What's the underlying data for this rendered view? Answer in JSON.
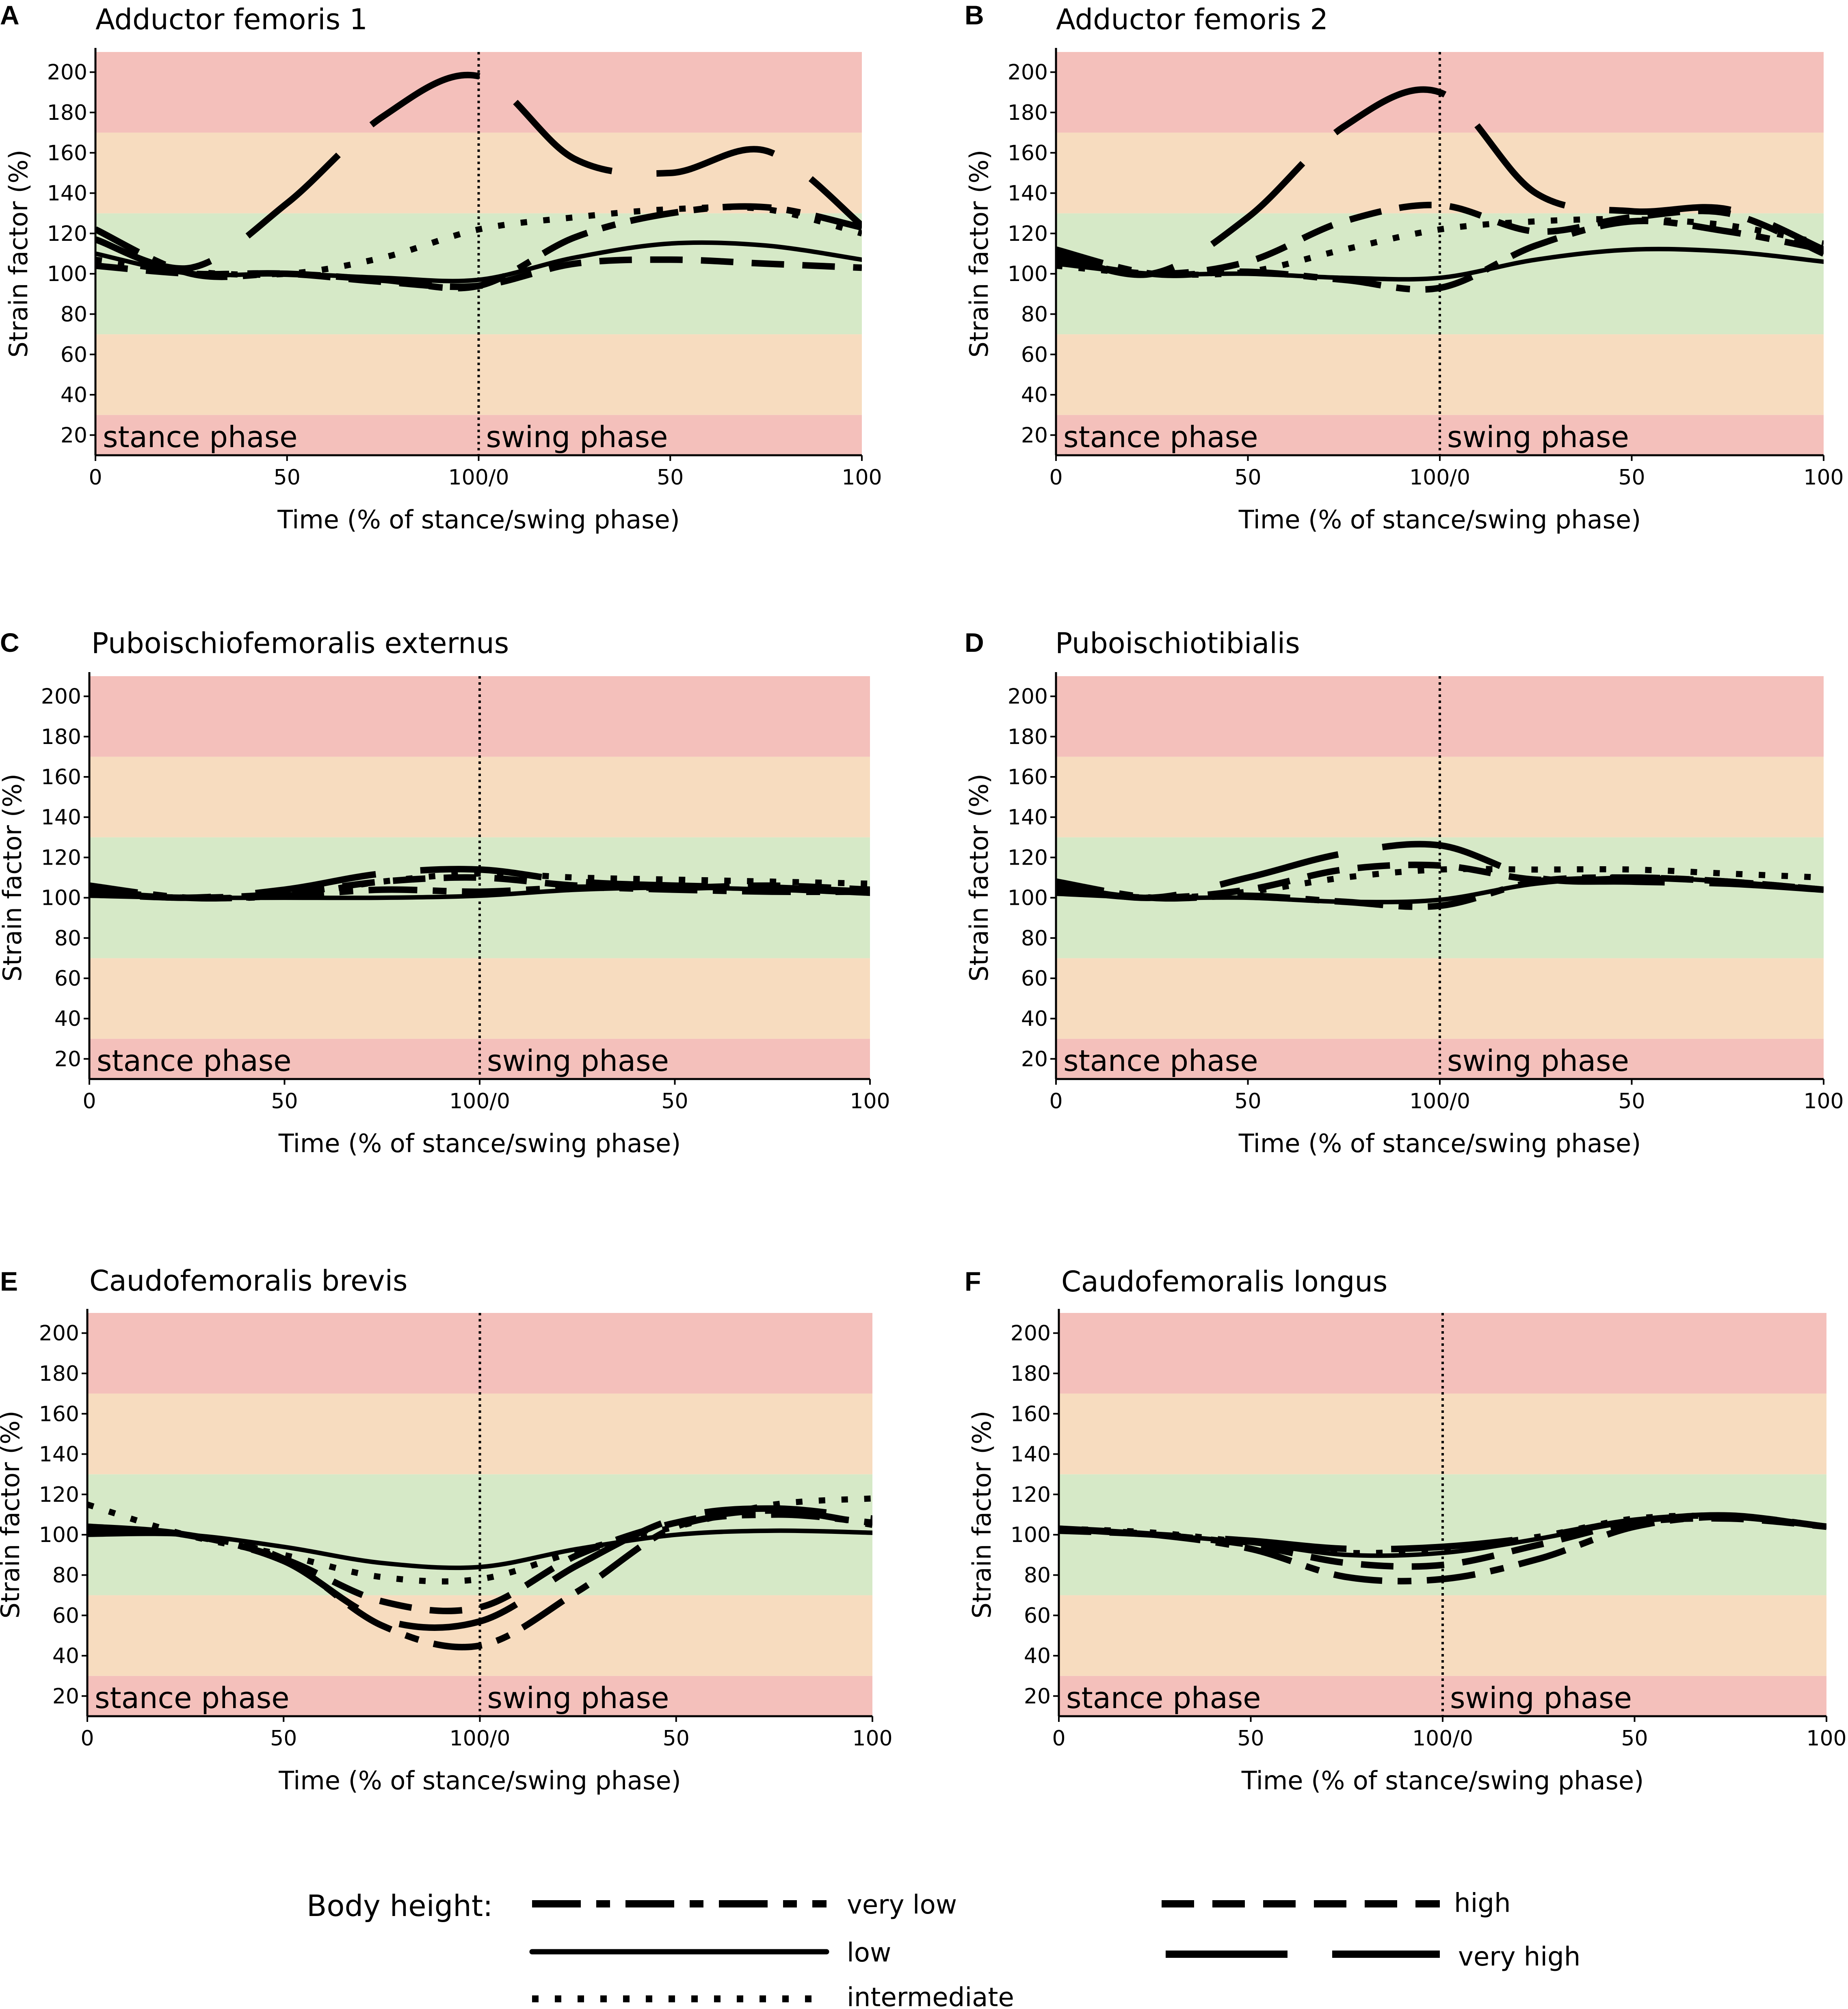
{
  "colors": {
    "zone_red": "#f4c0bb",
    "zone_orange": "#f7dcbf",
    "zone_green": "#d6e9c7",
    "line": "#000000"
  },
  "common": {
    "ylabel": "Strain factor (%)",
    "xlabel": "Time (% of stance/swing phase)",
    "stance_label": "stance phase",
    "swing_label": "swing phase",
    "x_ticks": [
      "0",
      "50",
      "100/0",
      "50",
      "100"
    ],
    "y_ticks": [
      "20",
      "40",
      "60",
      "80",
      "100",
      "120",
      "140",
      "160",
      "180",
      "200"
    ],
    "ylim": [
      10,
      210
    ],
    "zones": [
      {
        "from": 10,
        "to": 30,
        "color": "red"
      },
      {
        "from": 30,
        "to": 70,
        "color": "orange"
      },
      {
        "from": 70,
        "to": 130,
        "color": "green"
      },
      {
        "from": 130,
        "to": 170,
        "color": "orange"
      },
      {
        "from": 170,
        "to": 210,
        "color": "red"
      }
    ]
  },
  "legend": {
    "title": "Body height:",
    "entries": [
      {
        "key": "very_low",
        "label": "very low",
        "style": "dashdot"
      },
      {
        "key": "low",
        "label": "low",
        "style": "solid"
      },
      {
        "key": "intermediate",
        "label": "intermediate",
        "style": "dotted"
      },
      {
        "key": "high",
        "label": "high",
        "style": "dashed"
      },
      {
        "key": "very_high",
        "label": "very high",
        "style": "longdash"
      }
    ]
  },
  "chart_data": [
    {
      "letter": "A",
      "title": "Adductor femoris 1",
      "type": "line",
      "x": [
        0,
        25,
        50,
        75,
        100,
        125,
        150,
        175,
        200
      ],
      "series": [
        {
          "name": "very low",
          "values": [
            122,
            100,
            100,
            97,
            94,
            118,
            130,
            133,
            123
          ]
        },
        {
          "name": "low",
          "values": [
            110,
            100,
            100,
            98,
            97,
            108,
            115,
            114,
            107
          ]
        },
        {
          "name": "intermediate",
          "values": [
            107,
            101,
            100,
            108,
            122,
            128,
            132,
            132,
            120
          ]
        },
        {
          "name": "high",
          "values": [
            104,
            100,
            100,
            96,
            94,
            105,
            107,
            105,
            103
          ]
        },
        {
          "name": "very high",
          "values": [
            117,
            103,
            135,
            178,
            198,
            157,
            150,
            161,
            124
          ]
        }
      ]
    },
    {
      "letter": "B",
      "title": "Adductor femoris 2",
      "type": "line",
      "x": [
        0,
        25,
        50,
        75,
        100,
        125,
        150,
        175,
        200
      ],
      "series": [
        {
          "name": "very low",
          "values": [
            112,
            100,
            101,
            97,
            93,
            114,
            126,
            121,
            112
          ]
        },
        {
          "name": "low",
          "values": [
            105,
            100,
            100,
            98,
            98,
            107,
            112,
            111,
            106
          ]
        },
        {
          "name": "intermediate",
          "values": [
            104,
            100,
            101,
            112,
            122,
            126,
            127,
            124,
            115
          ]
        },
        {
          "name": "high",
          "values": [
            107,
            100,
            106,
            126,
            134,
            121,
            128,
            130,
            110
          ]
        },
        {
          "name": "very high",
          "values": [
            110,
            100,
            128,
            173,
            190,
            140,
            131,
            132,
            112
          ]
        }
      ]
    },
    {
      "letter": "C",
      "title": "Puboischiofemoralis externus",
      "type": "line",
      "x": [
        0,
        25,
        50,
        75,
        100,
        125,
        150,
        175,
        200
      ],
      "series": [
        {
          "name": "very low",
          "values": [
            106,
            100,
            101,
            104,
            103,
            105,
            104,
            103,
            103
          ]
        },
        {
          "name": "low",
          "values": [
            101,
            100,
            100,
            100,
            101,
            104,
            105,
            104,
            102
          ]
        },
        {
          "name": "intermediate",
          "values": [
            104,
            100,
            101,
            108,
            112,
            110,
            109,
            108,
            107
          ]
        },
        {
          "name": "high",
          "values": [
            102,
            100,
            102,
            108,
            110,
            106,
            105,
            106,
            104
          ]
        },
        {
          "name": "very high",
          "values": [
            103,
            100,
            104,
            112,
            114,
            108,
            106,
            105,
            103
          ]
        }
      ]
    },
    {
      "letter": "D",
      "title": "Puboischiotibialis",
      "type": "line",
      "x": [
        0,
        25,
        50,
        75,
        100,
        125,
        150,
        175,
        200
      ],
      "series": [
        {
          "name": "very low",
          "values": [
            108,
            100,
            101,
            98,
            96,
            108,
            110,
            108,
            104
          ]
        },
        {
          "name": "low",
          "values": [
            102,
            100,
            100,
            98,
            99,
            107,
            110,
            108,
            104
          ]
        },
        {
          "name": "intermediate",
          "values": [
            105,
            100,
            103,
            110,
            114,
            114,
            114,
            112,
            110
          ]
        },
        {
          "name": "high",
          "values": [
            104,
            100,
            104,
            114,
            116,
            109,
            110,
            108,
            104
          ]
        },
        {
          "name": "very high",
          "values": [
            106,
            100,
            110,
            122,
            126,
            110,
            108,
            107,
            104
          ]
        }
      ]
    },
    {
      "letter": "E",
      "title": "Caudofemoralis brevis",
      "type": "line",
      "x": [
        0,
        25,
        50,
        75,
        100,
        125,
        150,
        175,
        200
      ],
      "series": [
        {
          "name": "very low",
          "values": [
            103,
            100,
            88,
            55,
            45,
            72,
            104,
            110,
            106
          ]
        },
        {
          "name": "low",
          "values": [
            100,
            100,
            94,
            86,
            84,
            93,
            100,
            102,
            101
          ]
        },
        {
          "name": "intermediate",
          "values": [
            115,
            100,
            90,
            79,
            78,
            92,
            104,
            115,
            118
          ]
        },
        {
          "name": "high",
          "values": [
            102,
            100,
            88,
            67,
            64,
            90,
            106,
            112,
            105
          ]
        },
        {
          "name": "very high",
          "values": [
            104,
            100,
            87,
            58,
            57,
            85,
            108,
            113,
            108
          ]
        }
      ]
    },
    {
      "letter": "F",
      "title": "Caudofemoralis longus",
      "type": "line",
      "x": [
        0,
        25,
        50,
        75,
        100,
        125,
        150,
        175,
        200
      ],
      "series": [
        {
          "name": "very low",
          "values": [
            103,
            100,
            93,
            79,
            78,
            88,
            104,
            109,
            104
          ]
        },
        {
          "name": "low",
          "values": [
            103,
            100,
            96,
            90,
            91,
            98,
            107,
            110,
            104
          ]
        },
        {
          "name": "intermediate",
          "values": [
            103,
            101,
            96,
            91,
            93,
            99,
            108,
            109,
            104
          ]
        },
        {
          "name": "high",
          "values": [
            102,
            100,
            95,
            86,
            85,
            95,
            106,
            108,
            104
          ]
        },
        {
          "name": "very high",
          "values": [
            103,
            100,
            97,
            93,
            94,
            99,
            107,
            109,
            104
          ]
        }
      ]
    }
  ]
}
